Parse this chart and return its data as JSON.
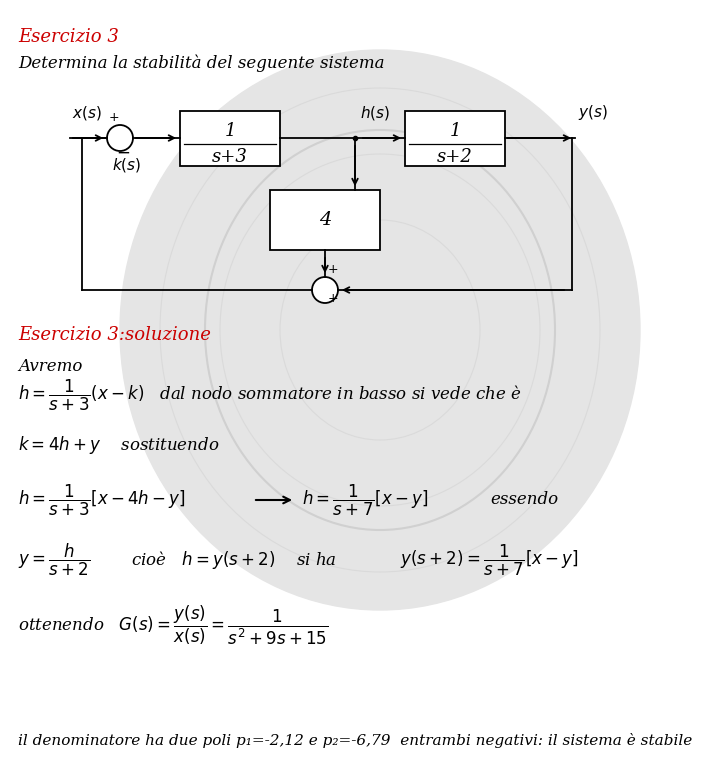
{
  "title1": "Esercizio 3",
  "subtitle": "Determina la stabilità del seguente sistema",
  "section2_title": "Esercizio 3:soluzione",
  "last_line": "il denominatore ha due poli p₁=-2,12 e p₂=-6,79  entrambi negativi: il sistema è stabile",
  "bg_color": "#ffffff",
  "red_color": "#cc0000",
  "black_color": "#000000"
}
